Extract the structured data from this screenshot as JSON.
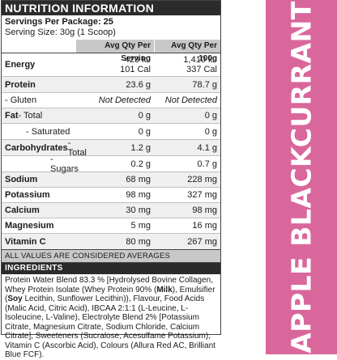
{
  "panel": {
    "title": "NUTRITION INFORMATION",
    "servings_label": "Servings Per Package: 25",
    "serving_size_label": "Serving Size: 30g (1 Scoop)",
    "col_serving": "Avg Qty Per Serving",
    "col_100g": "Avg Qty Per 100g"
  },
  "rows": {
    "energy": {
      "label": "Energy",
      "serving_1": "423 kJ",
      "serving_2": "101 Cal",
      "per100_1": "1,410 kJ",
      "per100_2": "337 Cal"
    },
    "protein": {
      "label": "Protein",
      "serving": "23.6 g",
      "per100": "78.7 g"
    },
    "gluten": {
      "label": "- Gluten",
      "serving": "Not Detected",
      "per100": "Not Detected"
    },
    "fat": {
      "label_bold": "Fat",
      "label_rest": " - Total",
      "serving": "0 g",
      "per100": "0 g"
    },
    "saturated": {
      "label": "- Saturated",
      "serving": "0 g",
      "per100": "0 g"
    },
    "carbs": {
      "label_bold": "Carbohydrates",
      "label_rest": " - Total",
      "serving": "1.2 g",
      "per100": "4.1 g"
    },
    "sugars": {
      "label": "- Sugars",
      "serving": "0.2 g",
      "per100": "0.7 g"
    },
    "sodium": {
      "label": "Sodium",
      "serving": "68 mg",
      "per100": "228 mg"
    },
    "potassium": {
      "label": "Potassium",
      "serving": "98 mg",
      "per100": "327 mg"
    },
    "calcium": {
      "label": "Calcium",
      "serving": "30 mg",
      "per100": "98 mg"
    },
    "magnesium": {
      "label": "Magnesium",
      "serving": "5 mg",
      "per100": "16 mg"
    },
    "vitamin_c": {
      "label": "Vitamin C",
      "serving": "80 mg",
      "per100": "267 mg"
    }
  },
  "averages_note": "ALL VALUES ARE CONSIDERED AVERAGES",
  "ingredients": {
    "title": "INGREDIENTS",
    "t1": "Protein Water Blend 83.3 % [Hydrolysed Bovine Collagen, Whey Protein Isolate (Whey Protein 90% (",
    "milk": "Milk",
    "t2": "), Emulsifier (",
    "soy": "Soy",
    "t3": " Lecithin, Sunflower Lecithin)), Flavour, Food Acids (Malic Acid, Citric Acid), IBCAA 2:1:1 (L-Leucine, L-Isoleucine, L-Valine), Electrolyte Blend 2% [Potassium Citrate, Magnesium Citrate, Sodium Chloride, Calcium Citrate], Sweeteners (Sucralose, Acesulfame Potassium), Vitamin C (Ascorbic Acid), Colours (Allura Red AC, Brilliant Blue FCF)."
  },
  "flavour": "APPLE BLACKCURRANT",
  "colors": {
    "flavour_band": "#d9679c",
    "header_dark": "#2b2b2b",
    "header_grey": "#c8c8c8"
  }
}
